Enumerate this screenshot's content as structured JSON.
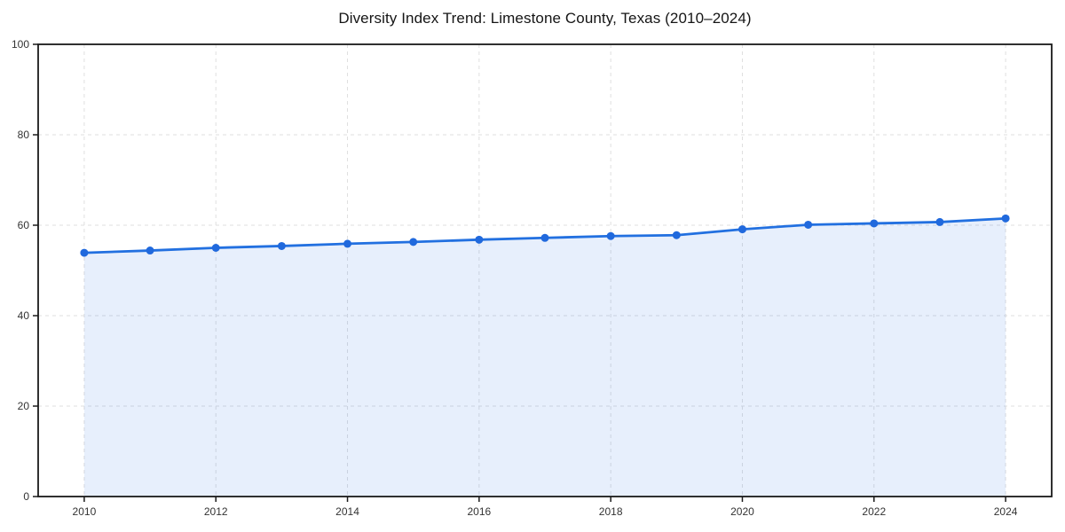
{
  "page": {
    "background_color": "#ffffff"
  },
  "chart_data": {
    "type": "area",
    "title": "Diversity Index Trend: Limestone County, Texas (2010–2024)",
    "x": [
      2010,
      2011,
      2012,
      2013,
      2014,
      2015,
      2016,
      2017,
      2018,
      2019,
      2020,
      2021,
      2022,
      2023,
      2024
    ],
    "series": [
      {
        "name": "Diversity Index",
        "values": [
          53.9,
          54.4,
          55.0,
          55.4,
          55.9,
          56.3,
          56.8,
          57.2,
          57.6,
          57.8,
          59.1,
          60.1,
          60.4,
          60.7,
          61.5
        ]
      }
    ],
    "xlabel": "",
    "ylabel": "",
    "xlim": [
      2009.3,
      2024.7
    ],
    "ylim": [
      0,
      100
    ],
    "x_ticks": [
      2010,
      2012,
      2014,
      2016,
      2018,
      2020,
      2022,
      2024
    ],
    "y_ticks": [
      0,
      20,
      40,
      60,
      80,
      100
    ],
    "grid": true,
    "legend": "none",
    "colors": {
      "line": "#2270e0",
      "marker": "#2069dd",
      "fill": "rgba(34,112,224,0.11)",
      "grid": "#dfdfdf",
      "axis_border": "#1a1a1a",
      "tick_label": "#333333",
      "title": "#151515"
    }
  }
}
